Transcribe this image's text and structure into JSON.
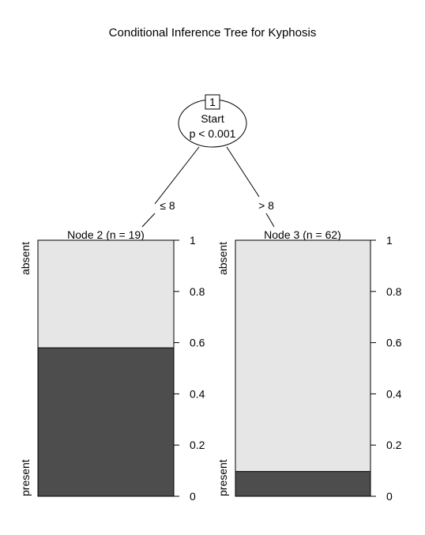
{
  "title": "Conditional Inference Tree for Kyphosis",
  "root": {
    "id": "1",
    "variable": "Start",
    "p_text": "p < 0.001"
  },
  "edges": {
    "left_label": "≤ 8",
    "right_label": "> 8"
  },
  "nodes": [
    {
      "label": "Node 2 (n = 19)",
      "absent_fraction": 0.42,
      "present_fraction": 0.58
    },
    {
      "label": "Node 3 (n = 62)",
      "absent_fraction": 0.903,
      "present_fraction": 0.097
    }
  ],
  "categories": {
    "top": "absent",
    "bottom": "present"
  },
  "axis_ticks": [
    "1",
    "0.8",
    "0.6",
    "0.4",
    "0.2",
    "0"
  ],
  "colors": {
    "absent": "#e6e6e6",
    "present": "#4d4d4d"
  }
}
